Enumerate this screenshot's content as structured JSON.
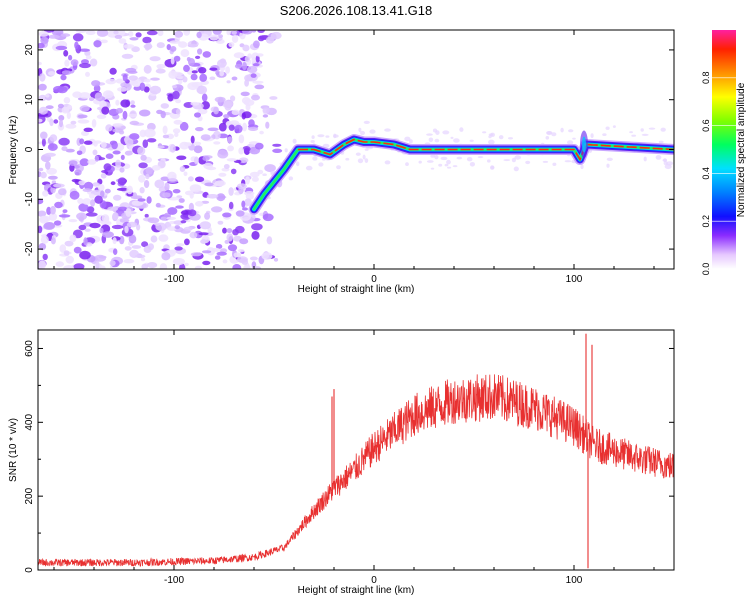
{
  "title": "S206.2026.108.13.41.G18",
  "chart_data": [
    {
      "type": "heatmap",
      "xlabel": "Height of straight line (km)",
      "ylabel": "Frequency (Hz)",
      "xlim": [
        -168,
        150
      ],
      "ylim": [
        -24,
        24
      ],
      "xticks": [
        -100,
        0,
        100
      ],
      "xtick_labels": [
        "-100",
        "0",
        "100"
      ],
      "yticks": [
        -20,
        -10,
        0,
        10,
        20
      ],
      "ytick_labels": [
        "-20",
        "-10",
        "0",
        "10",
        "20"
      ],
      "noise_region_x": [
        -168,
        -55
      ],
      "signal_track": {
        "x": [
          -60,
          -55,
          -45,
          -38,
          -30,
          -22,
          -15,
          -10,
          -5,
          0,
          10,
          18,
          100,
          103,
          106,
          150
        ],
        "freq": [
          -12,
          -9,
          -4,
          0,
          0,
          -1,
          1,
          2,
          1.5,
          1.5,
          1,
          0,
          0,
          -2,
          1,
          0
        ]
      },
      "colorbar": {
        "label": "Normalized spectral amplitude",
        "range": [
          0,
          1
        ],
        "ticks": [
          0.0,
          0.2,
          0.4,
          0.6,
          0.8
        ],
        "tick_labels": [
          "0.0",
          "0.2",
          "0.4",
          "0.6",
          "0.8"
        ]
      }
    },
    {
      "type": "line",
      "xlabel": "Height of straight line (km)",
      "ylabel": "SNR (10 * v/v)",
      "xlim": [
        -168,
        150
      ],
      "ylim": [
        0,
        650
      ],
      "xticks": [
        -100,
        0,
        100
      ],
      "xtick_labels": [
        "-100",
        "0",
        "100"
      ],
      "yticks": [
        0,
        200,
        400,
        600
      ],
      "ytick_labels": [
        "0",
        "200",
        "400",
        "600"
      ],
      "series": [
        {
          "name": "SNR",
          "color": "#e83030",
          "envelope_x": [
            -168,
            -120,
            -80,
            -60,
            -45,
            -30,
            -20,
            -10,
            0,
            20,
            40,
            60,
            80,
            100,
            110,
            130,
            150
          ],
          "envelope_y": [
            20,
            20,
            25,
            35,
            60,
            160,
            220,
            270,
            330,
            420,
            460,
            470,
            440,
            390,
            340,
            305,
            280
          ],
          "spikes": [
            {
              "x": -20,
              "y": 490
            },
            {
              "x": -21,
              "y": 470
            },
            {
              "x": 106,
              "y": 640
            },
            {
              "x": 107,
              "y": 5
            },
            {
              "x": 109,
              "y": 610
            }
          ]
        }
      ]
    }
  ]
}
